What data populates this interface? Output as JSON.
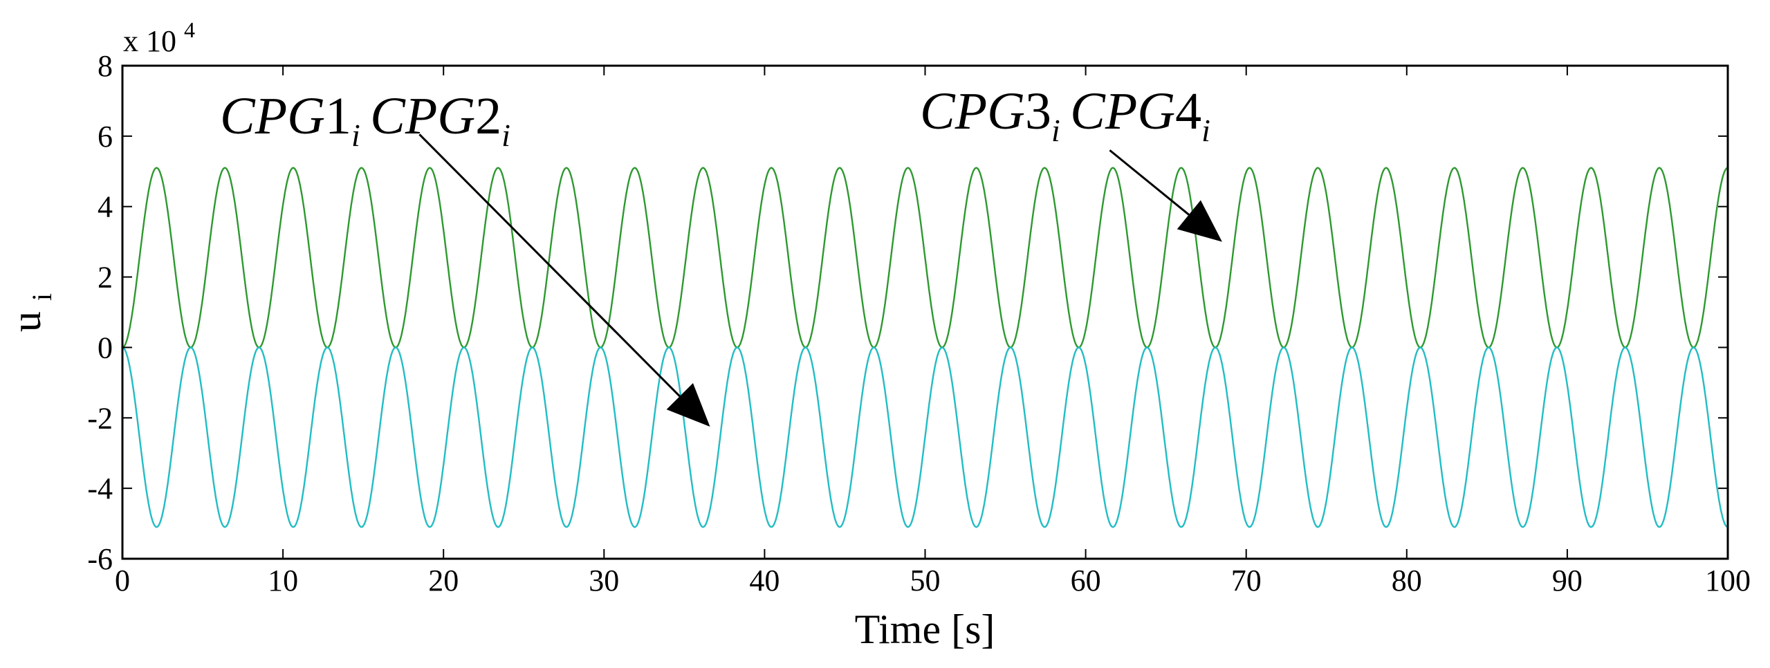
{
  "chart_data": {
    "type": "line",
    "title": "",
    "xlabel": "Time [s]",
    "ylabel_main": "u",
    "ylabel_sub": "i",
    "exponent_label": "x 10",
    "exponent_power": "4",
    "xlim": [
      0,
      100
    ],
    "ylim": [
      -6,
      8
    ],
    "xticks": [
      0,
      10,
      20,
      30,
      40,
      50,
      60,
      70,
      80,
      90,
      100
    ],
    "xtick_labels": [
      "0",
      "10",
      "20",
      "30",
      "40",
      "50",
      "60",
      "70",
      "80",
      "90",
      "100"
    ],
    "yticks": [
      -6,
      -4,
      -2,
      0,
      2,
      4,
      6,
      8
    ],
    "ytick_labels": [
      "-6",
      "-4",
      "-2",
      "0",
      "2",
      "4",
      "6",
      "8"
    ],
    "grid": false,
    "series_model": {
      "form": "value = offset + sign * amplitude * (1 - cos(2*pi*t/period)) / 2",
      "period": 4.255,
      "t_start": 0,
      "t_end": 100,
      "samples": 1600
    },
    "series": [
      {
        "name": "CPG1_i",
        "sign": 1,
        "amplitude": 5.1,
        "offset": 0,
        "color": "#0a6b2a"
      },
      {
        "name": "CPG2_i",
        "sign": -1,
        "amplitude": 5.1,
        "offset": 0,
        "color": "#1f6f6f"
      },
      {
        "name": "CPG3_i",
        "sign": 1,
        "amplitude": 5.1,
        "offset": 0,
        "color": "#2e9a2e"
      },
      {
        "name": "CPG4_i",
        "sign": -1,
        "amplitude": 5.1,
        "offset": 0,
        "color": "#20c0c8"
      }
    ],
    "annotations": [
      {
        "name": "cpg-1-2",
        "parts": [
          [
            "CPG",
            "1",
            "i"
          ],
          [
            "CPG",
            "2",
            "i"
          ]
        ],
        "arrow_from": [
          18.5,
          6.05
        ],
        "arrow_to": [
          36.6,
          -2.25
        ]
      },
      {
        "name": "cpg-3-4",
        "parts": [
          [
            "CPG",
            "3",
            "i"
          ],
          [
            "CPG",
            "4",
            "i"
          ]
        ],
        "arrow_from": [
          61.5,
          5.6
        ],
        "arrow_to": [
          68.5,
          3.0
        ]
      }
    ]
  }
}
